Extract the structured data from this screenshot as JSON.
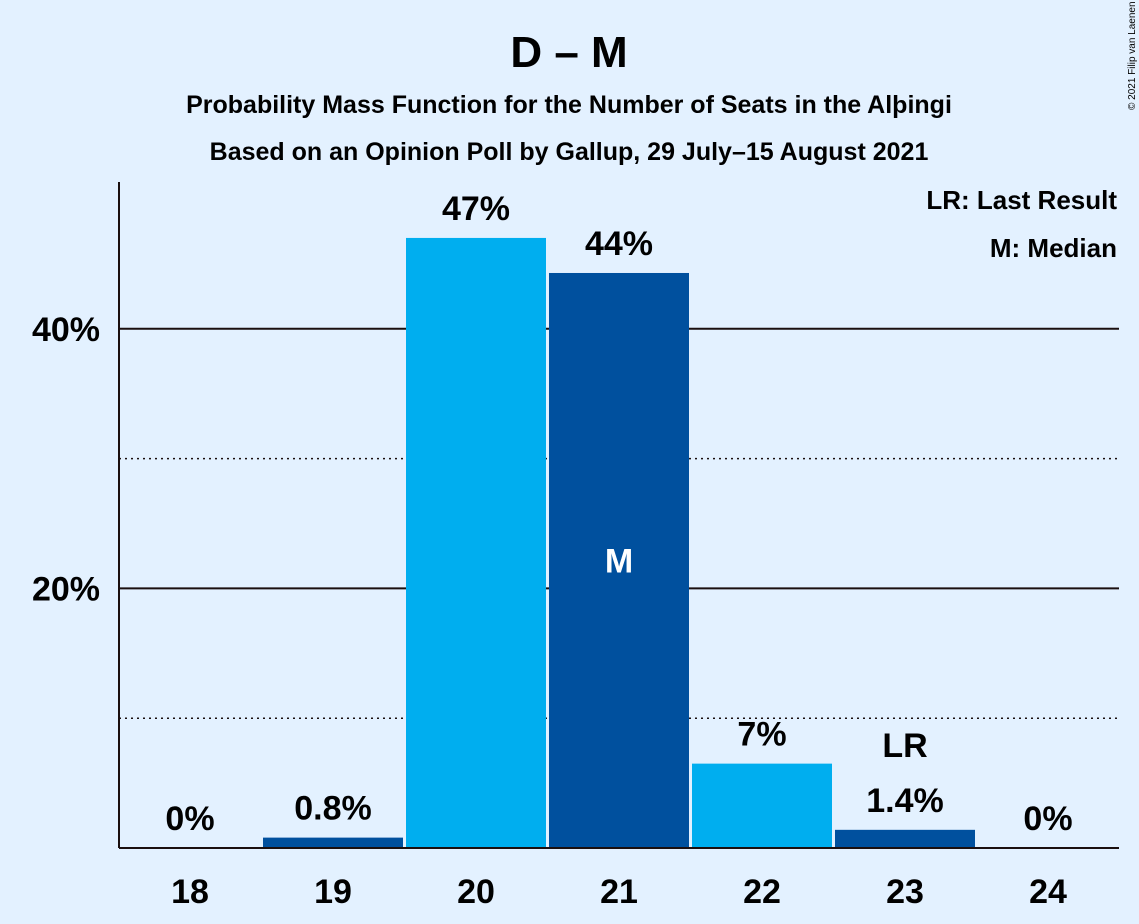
{
  "chart_data": {
    "type": "bar",
    "title": "D – M",
    "subtitle_1": "Probability Mass Function for the Number of Seats in the Alþingi",
    "subtitle_2": "Based on an Opinion Poll by Gallup, 29 July–15 August 2021",
    "categories": [
      "18",
      "19",
      "20",
      "21",
      "22",
      "23",
      "24"
    ],
    "values": [
      0,
      0.8,
      47,
      44.3,
      6.5,
      1.4,
      0
    ],
    "value_labels": [
      "0%",
      "0.8%",
      "47%",
      "44%",
      "7%",
      "1.4%",
      "0%"
    ],
    "bar_colors": [
      "#00509e",
      "#00509e",
      "#00aeef",
      "#00509e",
      "#00aeef",
      "#00509e",
      "#00aeef"
    ],
    "ylim": [
      0,
      50
    ],
    "yticks": [
      {
        "value": 20,
        "label": "20%",
        "style": "solid"
      },
      {
        "value": 40,
        "label": "40%",
        "style": "solid"
      }
    ],
    "minor_gridlines": [
      10,
      30
    ],
    "median_category": "21",
    "median_marker": "M",
    "last_result_category": "23",
    "last_result_marker": "LR",
    "legend": [
      "LR: Last Result",
      "M: Median"
    ],
    "legend_position": "top-right",
    "xlabel": "",
    "ylabel": ""
  },
  "copyright": "© 2021 Filip van Laenen",
  "colors": {
    "background": "#e3f1ff",
    "dark_blue": "#00509e",
    "light_blue": "#00aeef",
    "text": "#1a0f0f"
  }
}
